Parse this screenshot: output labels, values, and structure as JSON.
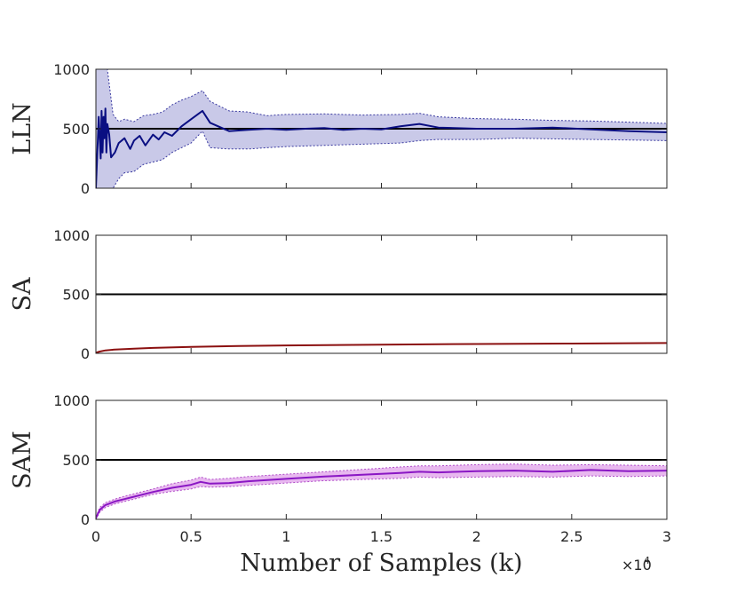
{
  "chart_data": [
    {
      "type": "line",
      "ylabel": "LLN",
      "xlim": [
        0,
        30000
      ],
      "ylim": [
        0,
        1000
      ],
      "yticks": [
        0,
        500,
        1000
      ],
      "xticks": [
        0,
        5000,
        10000,
        15000,
        20000,
        25000,
        30000
      ],
      "reference_line": 500,
      "colors": {
        "line": "#0a0f82",
        "band": "#c9c9e8",
        "band_edge": "#3a3aa0"
      },
      "series": [
        {
          "name": "mean",
          "x": [
            0,
            150,
            250,
            300,
            350,
            400,
            450,
            500,
            550,
            600,
            700,
            800,
            1000,
            1200,
            1500,
            1800,
            2000,
            2300,
            2600,
            3000,
            3300,
            3600,
            4000,
            4500,
            5000,
            5600,
            6000,
            7000,
            8000,
            9000,
            10000,
            11000,
            12000,
            13000,
            14000,
            15000,
            16000,
            17000,
            18000,
            20000,
            22000,
            24000,
            26000,
            28000,
            30000
          ],
          "y": [
            0,
            600,
            250,
            650,
            300,
            600,
            420,
            670,
            300,
            540,
            450,
            260,
            300,
            380,
            420,
            330,
            400,
            440,
            360,
            450,
            410,
            470,
            440,
            520,
            580,
            650,
            550,
            480,
            490,
            500,
            490,
            500,
            505,
            490,
            500,
            495,
            520,
            540,
            510,
            500,
            500,
            510,
            495,
            480,
            470
          ]
        },
        {
          "name": "upper",
          "x": [
            0,
            150,
            250,
            400,
            600,
            900,
            1200,
            1500,
            2000,
            2500,
            3000,
            3500,
            4000,
            4500,
            5000,
            5600,
            6000,
            7000,
            8000,
            9000,
            10000,
            12000,
            14000,
            16000,
            17000,
            18000,
            20000,
            22000,
            24000,
            26000,
            28000,
            30000
          ],
          "y": [
            1000,
            1000,
            1000,
            1000,
            1000,
            620,
            560,
            580,
            560,
            610,
            620,
            640,
            700,
            740,
            770,
            820,
            730,
            650,
            640,
            610,
            620,
            625,
            615,
            620,
            630,
            600,
            585,
            580,
            570,
            565,
            555,
            545
          ]
        },
        {
          "name": "lower",
          "x": [
            0,
            150,
            250,
            400,
            600,
            900,
            1200,
            1500,
            2000,
            2500,
            3000,
            3500,
            4000,
            4500,
            5000,
            5600,
            6000,
            7000,
            8000,
            9000,
            10000,
            12000,
            14000,
            16000,
            17000,
            18000,
            20000,
            22000,
            24000,
            26000,
            28000,
            30000
          ],
          "y": [
            0,
            0,
            0,
            0,
            0,
            0,
            80,
            130,
            140,
            200,
            220,
            240,
            300,
            340,
            380,
            480,
            340,
            330,
            330,
            340,
            350,
            360,
            370,
            380,
            400,
            410,
            410,
            420,
            415,
            410,
            405,
            400
          ]
        }
      ]
    },
    {
      "type": "line",
      "ylabel": "SA",
      "xlim": [
        0,
        30000
      ],
      "ylim": [
        0,
        1000
      ],
      "yticks": [
        0,
        500,
        1000
      ],
      "xticks": [
        0,
        5000,
        10000,
        15000,
        20000,
        25000,
        30000
      ],
      "reference_line": 500,
      "colors": {
        "line": "#8b1010"
      },
      "series": [
        {
          "name": "mean",
          "x": [
            0,
            200,
            500,
            1000,
            2000,
            3000,
            5000,
            7500,
            10000,
            15000,
            20000,
            25000,
            30000
          ],
          "y": [
            5,
            15,
            25,
            32,
            40,
            46,
            55,
            62,
            67,
            74,
            79,
            83,
            87
          ]
        }
      ]
    },
    {
      "type": "line",
      "ylabel": "SAM",
      "xlabel": "Number of Samples (k)",
      "xlim": [
        0,
        30000
      ],
      "ylim": [
        0,
        1000
      ],
      "yticks": [
        0,
        500,
        1000
      ],
      "xticks": [
        0,
        5000,
        10000,
        15000,
        20000,
        25000,
        30000
      ],
      "xtick_labels": [
        "0",
        "0.5",
        "1",
        "1.5",
        "2",
        "2.5",
        "3"
      ],
      "x_multiplier": {
        "base": "×10",
        "power": "4"
      },
      "reference_line": 500,
      "colors": {
        "line": "#8a17c4",
        "band": "#e8b8ef",
        "band_edge": "#b04cc8"
      },
      "series": [
        {
          "name": "mean",
          "x": [
            0,
            200,
            500,
            1000,
            1500,
            2000,
            3000,
            4000,
            5000,
            5500,
            6000,
            7000,
            8000,
            10000,
            12000,
            14000,
            16000,
            17000,
            18000,
            20000,
            22000,
            24000,
            26000,
            28000,
            30000
          ],
          "y": [
            10,
            80,
            120,
            150,
            170,
            190,
            230,
            265,
            290,
            315,
            300,
            305,
            320,
            340,
            360,
            375,
            390,
            400,
            395,
            405,
            410,
            400,
            415,
            405,
            410
          ]
        },
        {
          "name": "upper",
          "x": [
            0,
            200,
            500,
            1000,
            1500,
            2000,
            3000,
            4000,
            5000,
            5500,
            6000,
            7000,
            8000,
            10000,
            12000,
            14000,
            16000,
            17000,
            18000,
            20000,
            22000,
            24000,
            26000,
            28000,
            30000
          ],
          "y": [
            20,
            100,
            140,
            170,
            195,
            215,
            255,
            300,
            330,
            355,
            335,
            345,
            360,
            380,
            400,
            420,
            440,
            450,
            450,
            460,
            465,
            455,
            460,
            455,
            450
          ]
        },
        {
          "name": "lower",
          "x": [
            0,
            200,
            500,
            1000,
            1500,
            2000,
            3000,
            4000,
            5000,
            5500,
            6000,
            7000,
            8000,
            10000,
            12000,
            14000,
            16000,
            17000,
            18000,
            20000,
            22000,
            24000,
            26000,
            28000,
            30000
          ],
          "y": [
            0,
            60,
            100,
            130,
            150,
            170,
            210,
            235,
            255,
            275,
            270,
            275,
            285,
            305,
            325,
            335,
            345,
            355,
            350,
            355,
            360,
            355,
            365,
            360,
            365
          ]
        }
      ]
    }
  ]
}
